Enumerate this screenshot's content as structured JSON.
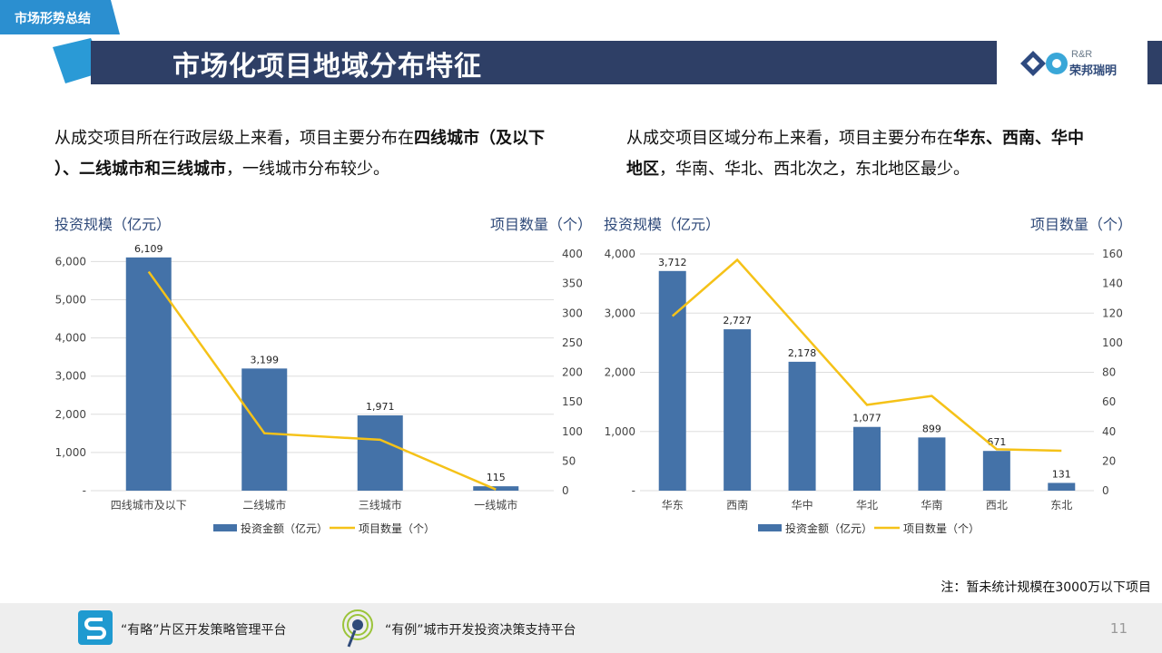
{
  "header": {
    "section_tag": "市场形势总结",
    "title": "市场化项目地域分布特征",
    "logo_en": "R&R",
    "logo_cn": "荣邦瑞明"
  },
  "left_text": {
    "p1": "从成交项目所在行政层级上来看，项目主要分布在",
    "b1": "四线城市（及以下",
    "p2": "）、二线城市和三线城市",
    "p3": "，一线城市分布较少。"
  },
  "right_text": {
    "p1": "从成交项目区域分布上来看，项目主要分布在",
    "b1": "华东、西南、华中",
    "b2": "地区",
    "p2": "，华南、华北、西北次之，东北地区最少。"
  },
  "chart_data": [
    {
      "type": "bar",
      "categories": [
        "四线城市及以下",
        "二线城市",
        "三线城市",
        "一线城市"
      ],
      "series": [
        {
          "name": "投资金额（亿元）",
          "type": "bar",
          "axis": "left",
          "values": [
            6109,
            3199,
            1971,
            115
          ],
          "labels": [
            "6,109",
            "3,199",
            "1,971",
            "115"
          ]
        },
        {
          "name": "项目数量（个）",
          "type": "line",
          "axis": "right",
          "values": [
            370,
            97,
            86,
            2
          ]
        }
      ],
      "ylabel": "投资规模（亿元）",
      "y2label": "项目数量（个）",
      "ylim": [
        0,
        6000
      ],
      "y2lim": [
        0,
        400
      ],
      "yticks": [
        "-",
        "1,000",
        "2,000",
        "3,000",
        "4,000",
        "5,000",
        "6,000"
      ],
      "y2ticks": [
        "0",
        "50",
        "100",
        "150",
        "200",
        "250",
        "300",
        "350",
        "400"
      ],
      "ymax_plot": 6200,
      "grid": true,
      "legend": "bottom"
    },
    {
      "type": "bar",
      "categories": [
        "华东",
        "西南",
        "华中",
        "华北",
        "华南",
        "西北",
        "东北"
      ],
      "series": [
        {
          "name": "投资金额（亿元）",
          "type": "bar",
          "axis": "left",
          "values": [
            3712,
            2727,
            2178,
            1077,
            899,
            671,
            131
          ],
          "labels": [
            "3,712",
            "2,727",
            "2,178",
            "1,077",
            "899",
            "671",
            "131"
          ]
        },
        {
          "name": "项目数量（个）",
          "type": "line",
          "axis": "right",
          "values": [
            118,
            156,
            107,
            58,
            64,
            28,
            27
          ]
        }
      ],
      "ylabel": "投资规模（亿元）",
      "y2label": "项目数量（个）",
      "ylim": [
        0,
        4000
      ],
      "y2lim": [
        0,
        160
      ],
      "yticks": [
        "-",
        "1,000",
        "2,000",
        "3,000",
        "4,000"
      ],
      "y2ticks": [
        "0",
        "20",
        "40",
        "60",
        "80",
        "100",
        "120",
        "140",
        "160"
      ],
      "ymax_plot": 4000,
      "grid": true,
      "legend": "bottom"
    }
  ],
  "note": "注：暂未统计规模在3000万以下项目",
  "footer": {
    "platform1": "“有略”片区开发策略管理平台",
    "platform2": "“有例”城市开发投资决策支持平台",
    "page": "11"
  },
  "colors": {
    "bar": "#4472a8",
    "line": "#f5c218",
    "title_bg": "#2e3f66",
    "tag_bg": "#2b8fd0",
    "axis_text": "#2f4a7a"
  }
}
